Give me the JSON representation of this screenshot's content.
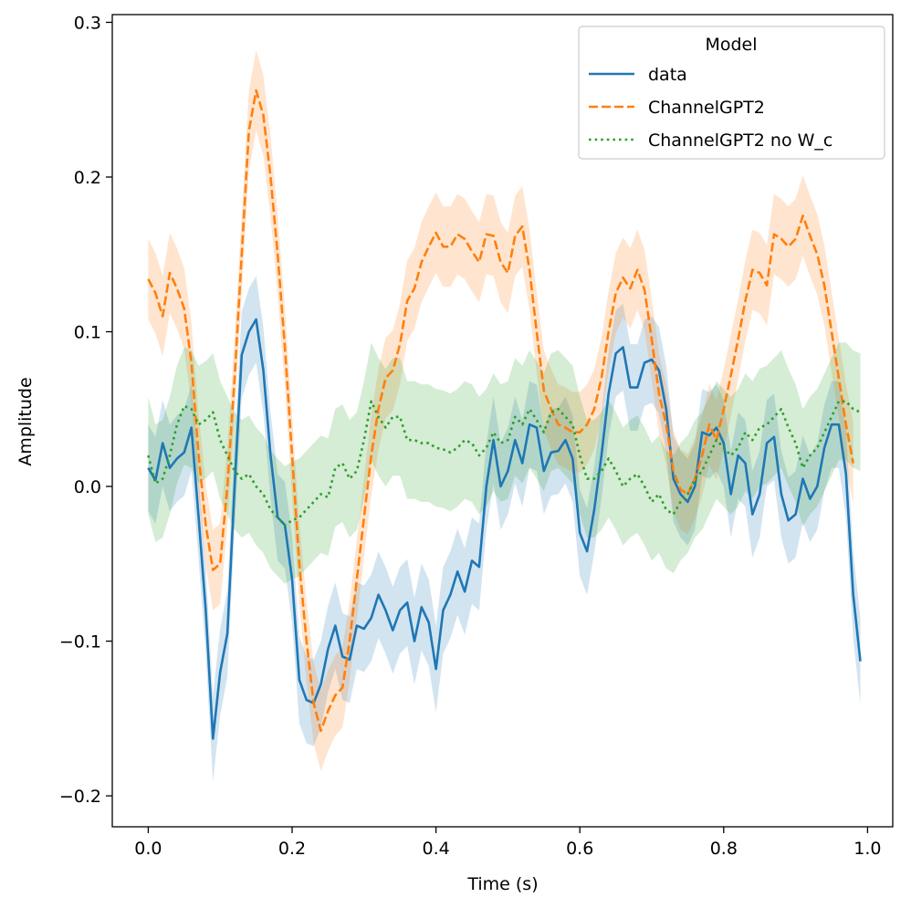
{
  "chart_data": {
    "type": "line",
    "title": "",
    "xlabel": "Time (s)",
    "ylabel": "Amplitude",
    "xlim": [
      -0.05,
      1.035
    ],
    "ylim": [
      -0.22,
      0.305
    ],
    "xticks": [
      0.0,
      0.2,
      0.4,
      0.6,
      0.8,
      1.0
    ],
    "xtick_labels": [
      "0.0",
      "0.2",
      "0.4",
      "0.6",
      "0.8",
      "1.0"
    ],
    "yticks": [
      -0.2,
      -0.1,
      0.0,
      0.1,
      0.2,
      0.3
    ],
    "ytick_labels": [
      "−0.2",
      "−0.1",
      "0.0",
      "0.1",
      "0.2",
      "0.3"
    ],
    "legend": {
      "title": "Model",
      "placement": "top-right"
    },
    "series": [
      {
        "name": "data",
        "style": "solid",
        "color": "#1f77b4",
        "band": 0.028,
        "points": [
          [
            0.0,
            0.012
          ],
          [
            0.01,
            0.004
          ],
          [
            0.02,
            0.028
          ],
          [
            0.03,
            0.012
          ],
          [
            0.04,
            0.018
          ],
          [
            0.05,
            0.022
          ],
          [
            0.06,
            0.038
          ],
          [
            0.07,
            -0.02
          ],
          [
            0.08,
            -0.08
          ],
          [
            0.09,
            -0.163
          ],
          [
            0.1,
            -0.12
          ],
          [
            0.11,
            -0.095
          ],
          [
            0.12,
            0.0
          ],
          [
            0.13,
            0.085
          ],
          [
            0.14,
            0.1
          ],
          [
            0.15,
            0.108
          ],
          [
            0.16,
            0.075
          ],
          [
            0.17,
            0.02
          ],
          [
            0.18,
            -0.02
          ],
          [
            0.19,
            -0.025
          ],
          [
            0.2,
            -0.06
          ],
          [
            0.21,
            -0.125
          ],
          [
            0.22,
            -0.138
          ],
          [
            0.23,
            -0.14
          ],
          [
            0.24,
            -0.128
          ],
          [
            0.25,
            -0.105
          ],
          [
            0.26,
            -0.09
          ],
          [
            0.27,
            -0.11
          ],
          [
            0.28,
            -0.112
          ],
          [
            0.29,
            -0.09
          ],
          [
            0.3,
            -0.092
          ],
          [
            0.31,
            -0.085
          ],
          [
            0.32,
            -0.07
          ],
          [
            0.33,
            -0.08
          ],
          [
            0.34,
            -0.093
          ],
          [
            0.35,
            -0.08
          ],
          [
            0.36,
            -0.075
          ],
          [
            0.37,
            -0.1
          ],
          [
            0.38,
            -0.078
          ],
          [
            0.39,
            -0.088
          ],
          [
            0.4,
            -0.118
          ],
          [
            0.41,
            -0.08
          ],
          [
            0.42,
            -0.07
          ],
          [
            0.43,
            -0.055
          ],
          [
            0.44,
            -0.068
          ],
          [
            0.45,
            -0.048
          ],
          [
            0.46,
            -0.052
          ],
          [
            0.47,
            0.0
          ],
          [
            0.48,
            0.03
          ],
          [
            0.49,
            0.0
          ],
          [
            0.5,
            0.01
          ],
          [
            0.51,
            0.03
          ],
          [
            0.52,
            0.015
          ],
          [
            0.53,
            0.04
          ],
          [
            0.54,
            0.038
          ],
          [
            0.55,
            0.01
          ],
          [
            0.56,
            0.022
          ],
          [
            0.57,
            0.023
          ],
          [
            0.58,
            0.03
          ],
          [
            0.59,
            0.018
          ],
          [
            0.6,
            -0.03
          ],
          [
            0.61,
            -0.042
          ],
          [
            0.62,
            -0.015
          ],
          [
            0.63,
            0.02
          ],
          [
            0.64,
            0.06
          ],
          [
            0.65,
            0.086
          ],
          [
            0.66,
            0.09
          ],
          [
            0.67,
            0.064
          ],
          [
            0.68,
            0.064
          ],
          [
            0.69,
            0.08
          ],
          [
            0.7,
            0.082
          ],
          [
            0.71,
            0.075
          ],
          [
            0.72,
            0.05
          ],
          [
            0.73,
            0.005
          ],
          [
            0.74,
            -0.005
          ],
          [
            0.75,
            -0.01
          ],
          [
            0.76,
            0.0
          ],
          [
            0.77,
            0.035
          ],
          [
            0.78,
            0.033
          ],
          [
            0.79,
            0.038
          ],
          [
            0.8,
            0.028
          ],
          [
            0.81,
            -0.005
          ],
          [
            0.82,
            0.02
          ],
          [
            0.83,
            0.015
          ],
          [
            0.84,
            -0.018
          ],
          [
            0.85,
            -0.005
          ],
          [
            0.86,
            0.028
          ],
          [
            0.87,
            0.032
          ],
          [
            0.88,
            -0.005
          ],
          [
            0.89,
            -0.022
          ],
          [
            0.9,
            -0.018
          ],
          [
            0.91,
            0.005
          ],
          [
            0.92,
            -0.008
          ],
          [
            0.93,
            0.0
          ],
          [
            0.94,
            0.025
          ],
          [
            0.95,
            0.04
          ],
          [
            0.96,
            0.04
          ],
          [
            0.97,
            0.008
          ],
          [
            0.98,
            -0.07
          ],
          [
            0.99,
            -0.113
          ]
        ]
      },
      {
        "name": "ChannelGPT2",
        "style": "dashed",
        "color": "#ff7f0e",
        "band": 0.026,
        "points": [
          [
            0.0,
            0.134
          ],
          [
            0.01,
            0.125
          ],
          [
            0.02,
            0.11
          ],
          [
            0.03,
            0.138
          ],
          [
            0.04,
            0.128
          ],
          [
            0.05,
            0.115
          ],
          [
            0.06,
            0.08
          ],
          [
            0.07,
            0.02
          ],
          [
            0.08,
            -0.025
          ],
          [
            0.09,
            -0.054
          ],
          [
            0.1,
            -0.05
          ],
          [
            0.11,
            0.0
          ],
          [
            0.12,
            0.07
          ],
          [
            0.13,
            0.15
          ],
          [
            0.14,
            0.23
          ],
          [
            0.15,
            0.256
          ],
          [
            0.16,
            0.24
          ],
          [
            0.17,
            0.2
          ],
          [
            0.18,
            0.15
          ],
          [
            0.19,
            0.09
          ],
          [
            0.2,
            0.02
          ],
          [
            0.21,
            -0.05
          ],
          [
            0.22,
            -0.1
          ],
          [
            0.23,
            -0.14
          ],
          [
            0.24,
            -0.158
          ],
          [
            0.25,
            -0.145
          ],
          [
            0.26,
            -0.135
          ],
          [
            0.27,
            -0.13
          ],
          [
            0.28,
            -0.1
          ],
          [
            0.29,
            -0.06
          ],
          [
            0.3,
            -0.02
          ],
          [
            0.31,
            0.02
          ],
          [
            0.32,
            0.05
          ],
          [
            0.33,
            0.07
          ],
          [
            0.34,
            0.075
          ],
          [
            0.35,
            0.092
          ],
          [
            0.36,
            0.12
          ],
          [
            0.37,
            0.128
          ],
          [
            0.38,
            0.145
          ],
          [
            0.39,
            0.155
          ],
          [
            0.4,
            0.164
          ],
          [
            0.41,
            0.155
          ],
          [
            0.42,
            0.155
          ],
          [
            0.43,
            0.163
          ],
          [
            0.44,
            0.16
          ],
          [
            0.45,
            0.152
          ],
          [
            0.46,
            0.145
          ],
          [
            0.47,
            0.163
          ],
          [
            0.48,
            0.162
          ],
          [
            0.49,
            0.145
          ],
          [
            0.5,
            0.138
          ],
          [
            0.51,
            0.162
          ],
          [
            0.52,
            0.168
          ],
          [
            0.53,
            0.14
          ],
          [
            0.54,
            0.1
          ],
          [
            0.55,
            0.062
          ],
          [
            0.56,
            0.05
          ],
          [
            0.57,
            0.04
          ],
          [
            0.58,
            0.038
          ],
          [
            0.59,
            0.035
          ],
          [
            0.6,
            0.035
          ],
          [
            0.61,
            0.04
          ],
          [
            0.62,
            0.05
          ],
          [
            0.63,
            0.07
          ],
          [
            0.64,
            0.1
          ],
          [
            0.65,
            0.125
          ],
          [
            0.66,
            0.135
          ],
          [
            0.67,
            0.128
          ],
          [
            0.68,
            0.14
          ],
          [
            0.69,
            0.127
          ],
          [
            0.7,
            0.095
          ],
          [
            0.71,
            0.06
          ],
          [
            0.72,
            0.04
          ],
          [
            0.73,
            0.01
          ],
          [
            0.74,
            -0.002
          ],
          [
            0.75,
            -0.005
          ],
          [
            0.76,
            0.005
          ],
          [
            0.77,
            0.02
          ],
          [
            0.78,
            0.04
          ],
          [
            0.79,
            0.03
          ],
          [
            0.8,
            0.05
          ],
          [
            0.81,
            0.072
          ],
          [
            0.82,
            0.095
          ],
          [
            0.83,
            0.12
          ],
          [
            0.84,
            0.14
          ],
          [
            0.85,
            0.138
          ],
          [
            0.86,
            0.13
          ],
          [
            0.87,
            0.163
          ],
          [
            0.88,
            0.16
          ],
          [
            0.89,
            0.155
          ],
          [
            0.9,
            0.16
          ],
          [
            0.91,
            0.175
          ],
          [
            0.92,
            0.162
          ],
          [
            0.93,
            0.15
          ],
          [
            0.94,
            0.13
          ],
          [
            0.95,
            0.1
          ],
          [
            0.96,
            0.07
          ],
          [
            0.97,
            0.04
          ],
          [
            0.98,
            0.015
          ]
        ]
      },
      {
        "name": "ChannelGPT2 no W_c",
        "style": "dotted",
        "color": "#2ca02c",
        "band": 0.038,
        "points": [
          [
            0.0,
            0.02
          ],
          [
            0.01,
            0.002
          ],
          [
            0.02,
            0.005
          ],
          [
            0.03,
            0.02
          ],
          [
            0.04,
            0.04
          ],
          [
            0.05,
            0.052
          ],
          [
            0.06,
            0.05
          ],
          [
            0.07,
            0.04
          ],
          [
            0.08,
            0.043
          ],
          [
            0.09,
            0.048
          ],
          [
            0.1,
            0.03
          ],
          [
            0.11,
            0.02
          ],
          [
            0.12,
            0.01
          ],
          [
            0.13,
            0.005
          ],
          [
            0.14,
            0.008
          ],
          [
            0.15,
            0.0
          ],
          [
            0.16,
            -0.005
          ],
          [
            0.17,
            -0.015
          ],
          [
            0.18,
            -0.02
          ],
          [
            0.19,
            -0.025
          ],
          [
            0.2,
            -0.022
          ],
          [
            0.21,
            -0.02
          ],
          [
            0.22,
            -0.015
          ],
          [
            0.23,
            -0.01
          ],
          [
            0.24,
            -0.005
          ],
          [
            0.25,
            -0.007
          ],
          [
            0.26,
            0.012
          ],
          [
            0.27,
            0.015
          ],
          [
            0.28,
            0.005
          ],
          [
            0.29,
            0.01
          ],
          [
            0.3,
            0.03
          ],
          [
            0.31,
            0.055
          ],
          [
            0.32,
            0.045
          ],
          [
            0.33,
            0.038
          ],
          [
            0.34,
            0.045
          ],
          [
            0.35,
            0.045
          ],
          [
            0.36,
            0.03
          ],
          [
            0.37,
            0.03
          ],
          [
            0.38,
            0.028
          ],
          [
            0.39,
            0.028
          ],
          [
            0.4,
            0.025
          ],
          [
            0.41,
            0.024
          ],
          [
            0.42,
            0.022
          ],
          [
            0.43,
            0.025
          ],
          [
            0.44,
            0.03
          ],
          [
            0.45,
            0.028
          ],
          [
            0.46,
            0.02
          ],
          [
            0.47,
            0.025
          ],
          [
            0.48,
            0.035
          ],
          [
            0.49,
            0.028
          ],
          [
            0.5,
            0.03
          ],
          [
            0.51,
            0.045
          ],
          [
            0.52,
            0.04
          ],
          [
            0.53,
            0.05
          ],
          [
            0.54,
            0.043
          ],
          [
            0.55,
            0.035
          ],
          [
            0.56,
            0.048
          ],
          [
            0.57,
            0.05
          ],
          [
            0.58,
            0.045
          ],
          [
            0.59,
            0.04
          ],
          [
            0.6,
            0.02
          ],
          [
            0.61,
            0.005
          ],
          [
            0.62,
            0.005
          ],
          [
            0.63,
            0.01
          ],
          [
            0.64,
            0.018
          ],
          [
            0.65,
            0.01
          ],
          [
            0.66,
            0.0
          ],
          [
            0.67,
            0.005
          ],
          [
            0.68,
            0.008
          ],
          [
            0.69,
            0.0
          ],
          [
            0.7,
            -0.01
          ],
          [
            0.71,
            -0.005
          ],
          [
            0.72,
            -0.015
          ],
          [
            0.73,
            -0.018
          ],
          [
            0.74,
            -0.01
          ],
          [
            0.75,
            -0.005
          ],
          [
            0.76,
            0.005
          ],
          [
            0.77,
            0.01
          ],
          [
            0.78,
            0.02
          ],
          [
            0.79,
            0.03
          ],
          [
            0.8,
            0.025
          ],
          [
            0.81,
            0.02
          ],
          [
            0.82,
            0.025
          ],
          [
            0.83,
            0.035
          ],
          [
            0.84,
            0.03
          ],
          [
            0.85,
            0.038
          ],
          [
            0.86,
            0.04
          ],
          [
            0.87,
            0.045
          ],
          [
            0.88,
            0.05
          ],
          [
            0.89,
            0.038
          ],
          [
            0.9,
            0.028
          ],
          [
            0.91,
            0.012
          ],
          [
            0.92,
            0.02
          ],
          [
            0.93,
            0.025
          ],
          [
            0.94,
            0.035
          ],
          [
            0.95,
            0.045
          ],
          [
            0.96,
            0.055
          ],
          [
            0.97,
            0.055
          ],
          [
            0.98,
            0.05
          ],
          [
            0.99,
            0.048
          ]
        ]
      }
    ]
  }
}
